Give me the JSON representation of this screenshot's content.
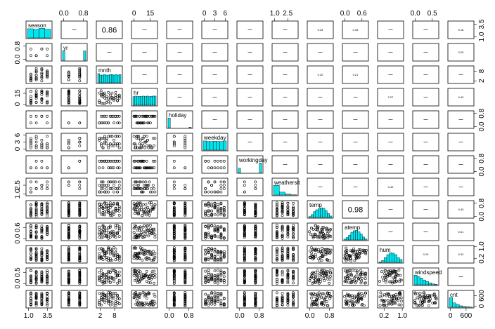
{
  "chart_data": {
    "type": "scatter",
    "kind": "pairs-matrix",
    "variables": [
      {
        "name": "season",
        "label": "season",
        "hist": [
          0.95,
          0.9,
          1.0,
          0.9
        ]
      },
      {
        "name": "yr",
        "label": "yr",
        "hist": [
          1.0,
          0,
          0,
          0,
          0,
          0,
          0,
          0,
          0,
          0.98
        ]
      },
      {
        "name": "mnth",
        "label": "mnth",
        "hist": [
          0.95,
          0.8,
          0.8,
          0.85,
          0.8,
          0.8,
          0.85,
          0.85,
          0.8,
          0.85,
          0.8,
          0.85
        ]
      },
      {
        "name": "hr",
        "label": "hr",
        "hist": [
          0.9,
          0.95,
          0.9,
          0.92,
          0.9,
          0.95,
          0.9,
          0.95,
          0.9,
          0.92,
          0.95,
          0.95
        ]
      },
      {
        "name": "holiday",
        "label": "holiday",
        "hist": [
          1.0,
          0,
          0,
          0,
          0,
          0,
          0,
          0,
          0,
          0.05
        ]
      },
      {
        "name": "weekday",
        "label": "weekday",
        "hist": [
          0.95,
          0.9,
          0.9,
          0.92,
          0.9,
          0.9,
          0.95
        ]
      },
      {
        "name": "workingday",
        "label": "workingday",
        "hist": [
          0.45,
          0,
          0,
          0,
          0,
          0,
          0,
          0,
          0,
          1.0
        ]
      },
      {
        "name": "weathersit",
        "label": "weathersit",
        "hist": [
          1.0,
          0.3,
          0.1,
          0.02
        ]
      },
      {
        "name": "temp",
        "label": "temp",
        "hist": [
          0.1,
          0.3,
          0.6,
          0.8,
          0.9,
          1.0,
          0.95,
          0.7,
          0.4,
          0.15
        ]
      },
      {
        "name": "atemp",
        "label": "atemp",
        "hist": [
          0.1,
          0.25,
          0.5,
          0.8,
          0.95,
          1.0,
          0.85,
          0.6,
          0.3,
          0.1
        ]
      },
      {
        "name": "hum",
        "label": "hum",
        "hist": [
          0.05,
          0.2,
          0.5,
          0.8,
          1.0,
          0.95,
          0.8,
          0.5,
          0.3
        ]
      },
      {
        "name": "windspeed",
        "label": "windspeed",
        "hist": [
          1.0,
          0.85,
          0.7,
          0.5,
          0.35,
          0.2,
          0.1,
          0.05
        ]
      },
      {
        "name": "cnt",
        "label": "cnt",
        "hist": [
          1.0,
          0.45,
          0.3,
          0.15,
          0.08,
          0.05,
          0.02
        ]
      }
    ],
    "axis_ticks": [
      {
        "var": "season",
        "labels": [
          "1.0",
          "3.5"
        ],
        "pos": [
          0.1,
          0.82
        ]
      },
      {
        "var": "yr",
        "labels": [
          "0.0",
          "0.8"
        ],
        "pos": [
          0.1,
          0.85
        ]
      },
      {
        "var": "mnth",
        "labels": [
          "2",
          "8"
        ],
        "pos": [
          0.15,
          0.7
        ]
      },
      {
        "var": "hr",
        "labels": [
          "0",
          "15"
        ],
        "pos": [
          0.1,
          0.72
        ]
      },
      {
        "var": "holiday",
        "labels": [
          "0.0",
          "0.8"
        ],
        "pos": [
          0.1,
          0.85
        ]
      },
      {
        "var": "weekday",
        "labels": [
          "0",
          "3",
          "6"
        ],
        "pos": [
          0.1,
          0.5,
          0.9
        ]
      },
      {
        "var": "workingday",
        "labels": [
          "0.0",
          "0.8"
        ],
        "pos": [
          0.1,
          0.85
        ]
      },
      {
        "var": "weathersit",
        "labels": [
          "1.0",
          "2.5"
        ],
        "pos": [
          0.1,
          0.6
        ]
      },
      {
        "var": "temp",
        "labels": [
          "0.0",
          "0.8"
        ],
        "pos": [
          0.1,
          0.85
        ]
      },
      {
        "var": "atemp",
        "labels": [
          "0.0",
          "0.6"
        ],
        "pos": [
          0.1,
          0.75
        ]
      },
      {
        "var": "hum",
        "labels": [
          "0.2",
          "1.0"
        ],
        "pos": [
          0.25,
          0.95
        ]
      },
      {
        "var": "windspeed",
        "labels": [
          "0.0",
          "0.5"
        ],
        "pos": [
          0.1,
          0.75
        ]
      },
      {
        "var": "cnt",
        "labels": [
          "0",
          "600"
        ],
        "pos": [
          0.1,
          0.7
        ]
      }
    ],
    "x_tick_side": [
      "bottom",
      "top",
      "bottom",
      "top",
      "bottom",
      "top",
      "bottom",
      "top",
      "bottom",
      "top",
      "bottom",
      "top",
      "bottom"
    ],
    "y_tick_side": [
      "right",
      "left",
      "right",
      "left",
      "right",
      "left",
      "right",
      "left",
      "right",
      "left",
      "right",
      "left",
      "right"
    ],
    "correlations": [
      {
        "row": 0,
        "col": 2,
        "value": "0.86"
      },
      {
        "row": 8,
        "col": 9,
        "value": "0.98"
      },
      {
        "row": 0,
        "col": 8,
        "value": "0.33"
      },
      {
        "row": 0,
        "col": 9,
        "value": "0.33"
      },
      {
        "row": 2,
        "col": 8,
        "value": "0.20"
      },
      {
        "row": 2,
        "col": 9,
        "value": "0.21"
      },
      {
        "row": 3,
        "col": 10,
        "value": "0.27"
      },
      {
        "row": 3,
        "col": 12,
        "value": "0.40"
      },
      {
        "row": 7,
        "col": 10,
        "value": "0.40"
      },
      {
        "row": 8,
        "col": 12,
        "value": "0.40"
      },
      {
        "row": 9,
        "col": 12,
        "value": "0.41"
      },
      {
        "row": 10,
        "col": 11,
        "value": "0.29"
      },
      {
        "row": 10,
        "col": 12,
        "value": "0.32"
      },
      {
        "row": 0,
        "col": 12,
        "value": "0.18"
      },
      {
        "row": 1,
        "col": 12,
        "value": "0.25"
      }
    ],
    "histogram_color": "#00E5EE",
    "point_color": "#000000",
    "frame_color": "#000000"
  }
}
